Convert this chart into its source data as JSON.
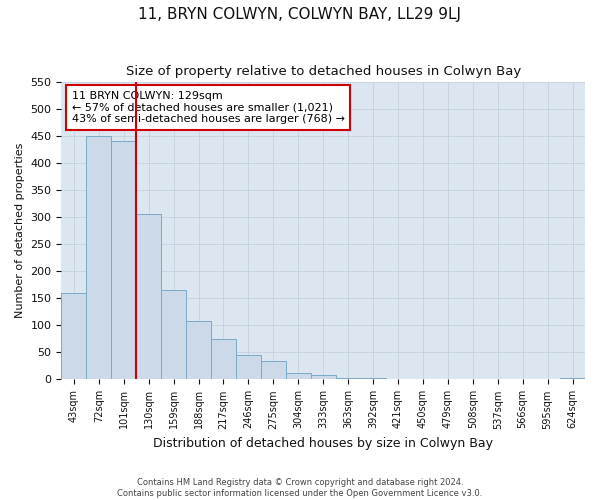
{
  "title": "11, BRYN COLWYN, COLWYN BAY, LL29 9LJ",
  "subtitle": "Size of property relative to detached houses in Colwyn Bay",
  "xlabel": "Distribution of detached houses by size in Colwyn Bay",
  "ylabel": "Number of detached properties",
  "categories": [
    "43sqm",
    "72sqm",
    "101sqm",
    "130sqm",
    "159sqm",
    "188sqm",
    "217sqm",
    "246sqm",
    "275sqm",
    "304sqm",
    "333sqm",
    "363sqm",
    "392sqm",
    "421sqm",
    "450sqm",
    "479sqm",
    "508sqm",
    "537sqm",
    "566sqm",
    "595sqm",
    "624sqm"
  ],
  "values": [
    160,
    450,
    440,
    305,
    165,
    108,
    75,
    45,
    35,
    12,
    8,
    3,
    3,
    1,
    1,
    1,
    1,
    1,
    1,
    1,
    3
  ],
  "bar_color": "#ccd9e8",
  "bar_edge_color": "#7aaac8",
  "property_line_x": 3,
  "property_line_color": "#cc0000",
  "annotation_text": "11 BRYN COLWYN: 129sqm\n← 57% of detached houses are smaller (1,021)\n43% of semi-detached houses are larger (768) →",
  "annotation_box_facecolor": "#ffffff",
  "annotation_box_edgecolor": "#cc0000",
  "ylim": [
    0,
    550
  ],
  "yticks": [
    0,
    50,
    100,
    150,
    200,
    250,
    300,
    350,
    400,
    450,
    500,
    550
  ],
  "background_color": "#dce6f0",
  "footer_text": "Contains HM Land Registry data © Crown copyright and database right 2024.\nContains public sector information licensed under the Open Government Licence v3.0.",
  "title_fontsize": 11,
  "subtitle_fontsize": 9.5,
  "xlabel_fontsize": 9,
  "ylabel_fontsize": 8,
  "tick_fontsize": 8,
  "annotation_fontsize": 8
}
